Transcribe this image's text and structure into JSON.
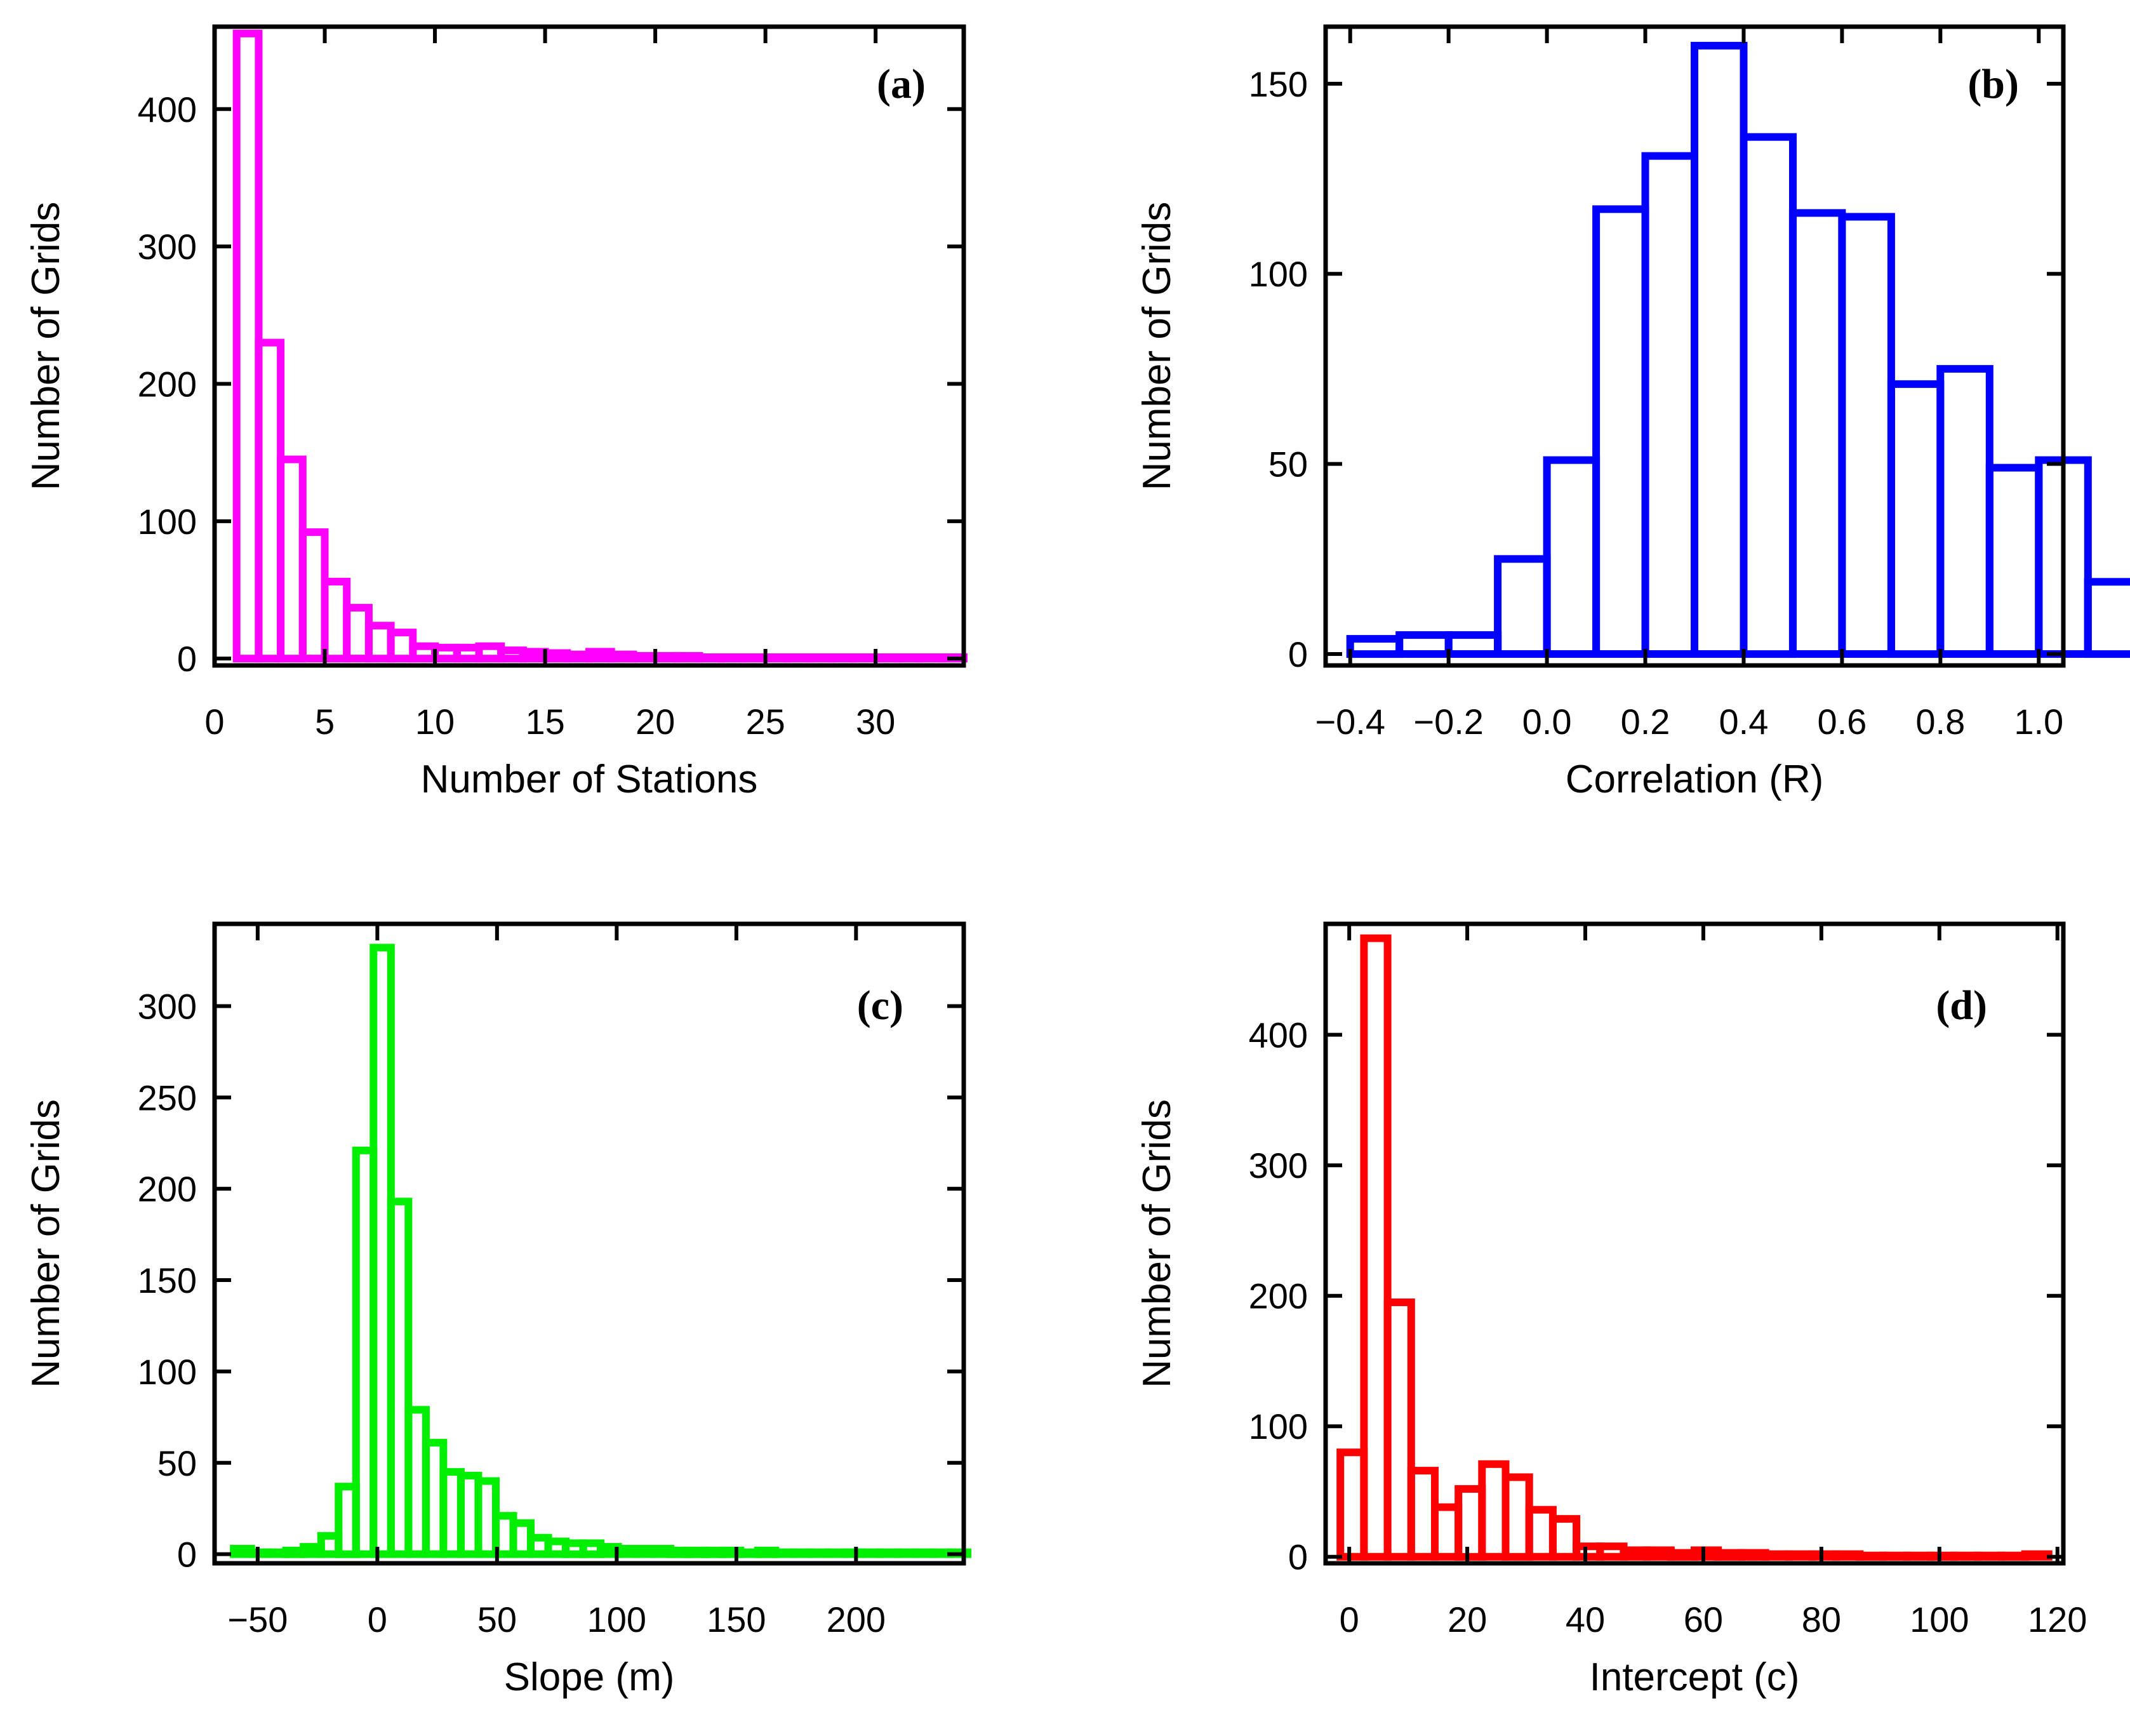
{
  "chart_data": [
    {
      "id": "a",
      "type": "bar",
      "panel_label": "(a)",
      "color": "#ff00ff",
      "xlabel": "Number of Stations",
      "ylabel": "Number of Grids",
      "xlim": [
        0,
        34
      ],
      "ylim": [
        -5,
        460
      ],
      "xticks": [
        0,
        5,
        10,
        15,
        20,
        25,
        30
      ],
      "yticks": [
        0,
        100,
        200,
        300,
        400
      ],
      "xtick_labels": [
        "0",
        "5",
        "10",
        "15",
        "20",
        "25",
        "30"
      ],
      "ytick_labels": [
        "0",
        "100",
        "200",
        "300",
        "400"
      ],
      "bin_start": 1,
      "bin_width": 1,
      "values": [
        455,
        230,
        145,
        92,
        56,
        37,
        24,
        19,
        9,
        8,
        8,
        9,
        6,
        5,
        4,
        3,
        5,
        3,
        2,
        2,
        2,
        1,
        1,
        1,
        1,
        1,
        1,
        1,
        1,
        1,
        1,
        1,
        1
      ]
    },
    {
      "id": "b",
      "type": "bar",
      "panel_label": "(b)",
      "color": "#0000ff",
      "xlabel": "Correlation (R)",
      "ylabel": "Number of Grids",
      "xlim": [
        -0.45,
        1.05
      ],
      "ylim": [
        -3,
        165
      ],
      "xticks": [
        -0.4,
        -0.2,
        0.0,
        0.2,
        0.4,
        0.6,
        0.8,
        1.0
      ],
      "yticks": [
        0,
        50,
        100,
        150
      ],
      "xtick_labels": [
        "−0.4",
        "−0.2",
        "0.0",
        "0.2",
        "0.4",
        "0.6",
        "0.8",
        "1.0"
      ],
      "ytick_labels": [
        "0",
        "50",
        "100",
        "150"
      ],
      "bin_start": -0.4,
      "bin_width": 0.1,
      "values": [
        4,
        5,
        5,
        25,
        51,
        117,
        131,
        160,
        136,
        116,
        115,
        71,
        75,
        49,
        51,
        19,
        1
      ]
    },
    {
      "id": "c",
      "type": "bar",
      "panel_label": "(c)",
      "color": "#00ee00",
      "xlabel": "Slope (m)",
      "ylabel": "Number of Grids",
      "xlim": [
        -68,
        245
      ],
      "ylim": [
        -5,
        345
      ],
      "xticks": [
        -50,
        0,
        50,
        100,
        150,
        200
      ],
      "yticks": [
        0,
        50,
        100,
        150,
        200,
        250,
        300
      ],
      "xtick_labels": [
        "−50",
        "0",
        "50",
        "100",
        "150",
        "200"
      ],
      "ytick_labels": [
        "0",
        "50",
        "100",
        "150",
        "200",
        "250",
        "300"
      ],
      "bin_start": -60,
      "bin_width": 7.3,
      "values": [
        3,
        1,
        1,
        2,
        4,
        10,
        37,
        221,
        332,
        193,
        79,
        61,
        45,
        43,
        40,
        21,
        17,
        9,
        7,
        6,
        6,
        4,
        3,
        3,
        3,
        2,
        2,
        2,
        2,
        1,
        2,
        1,
        1,
        1,
        1,
        1,
        1,
        1,
        1,
        1,
        1,
        1
      ]
    },
    {
      "id": "d",
      "type": "bar",
      "panel_label": "(d)",
      "color": "#ff0000",
      "xlabel": "Intercept (c)",
      "ylabel": "Number of Grids",
      "xlim": [
        -4,
        121
      ],
      "ylim": [
        -5,
        485
      ],
      "xticks": [
        0,
        20,
        40,
        60,
        80,
        100,
        120
      ],
      "yticks": [
        0,
        100,
        200,
        300,
        400
      ],
      "xtick_labels": [
        "0",
        "20",
        "40",
        "60",
        "80",
        "100",
        "120"
      ],
      "ytick_labels": [
        "0",
        "100",
        "200",
        "300",
        "400"
      ],
      "bin_start": -1.5,
      "bin_width": 4,
      "values": [
        80,
        474,
        195,
        66,
        38,
        52,
        71,
        61,
        36,
        29,
        8,
        8,
        5,
        5,
        3,
        5,
        3,
        3,
        2,
        2,
        2,
        2,
        1,
        1,
        1,
        1,
        1,
        1,
        1,
        2
      ]
    }
  ]
}
